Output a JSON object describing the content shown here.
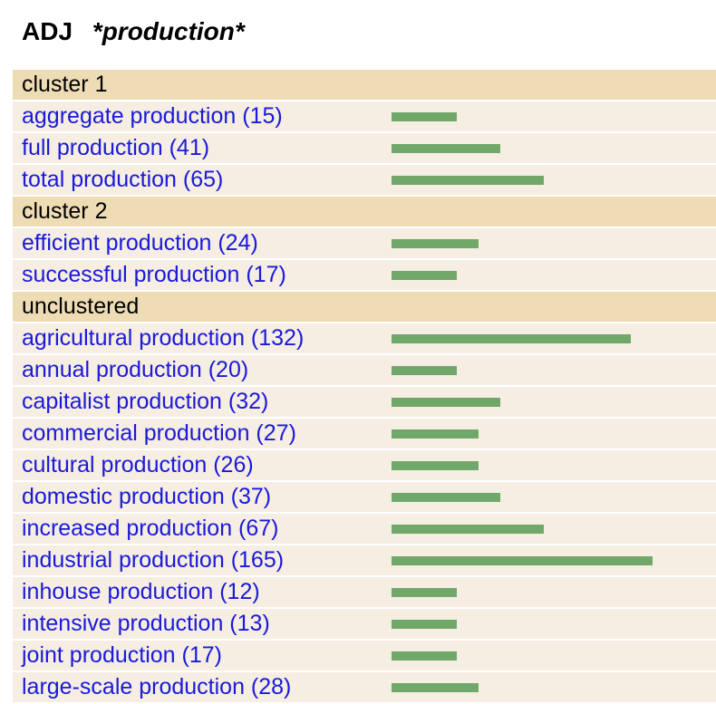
{
  "header": {
    "pos": "ADJ",
    "query": "*production*"
  },
  "colors": {
    "cluster_bg": "#eedcb4",
    "item_bg": "#f6ede3",
    "link": "#1a1ad8",
    "bar": "#70a86a"
  },
  "groups": [
    {
      "title": "cluster 1",
      "items": [
        {
          "label": "aggregate production (15)",
          "count": 15
        },
        {
          "label": "full production (41)",
          "count": 41
        },
        {
          "label": "total production (65)",
          "count": 65
        }
      ]
    },
    {
      "title": "cluster 2",
      "items": [
        {
          "label": "efficient production (24)",
          "count": 24
        },
        {
          "label": "successful production (17)",
          "count": 17
        }
      ]
    },
    {
      "title": "unclustered",
      "items": [
        {
          "label": "agricultural production (132)",
          "count": 132
        },
        {
          "label": "annual production (20)",
          "count": 20
        },
        {
          "label": "capitalist production (32)",
          "count": 32
        },
        {
          "label": "commercial production (27)",
          "count": 27
        },
        {
          "label": "cultural production (26)",
          "count": 26
        },
        {
          "label": "domestic production (37)",
          "count": 37
        },
        {
          "label": "increased production (67)",
          "count": 67
        },
        {
          "label": "industrial production (165)",
          "count": 165
        },
        {
          "label": "inhouse production (12)",
          "count": 12
        },
        {
          "label": "intensive production (13)",
          "count": 13
        },
        {
          "label": "joint production (17)",
          "count": 17
        },
        {
          "label": "large-scale production (28)",
          "count": 28
        }
      ]
    }
  ]
}
